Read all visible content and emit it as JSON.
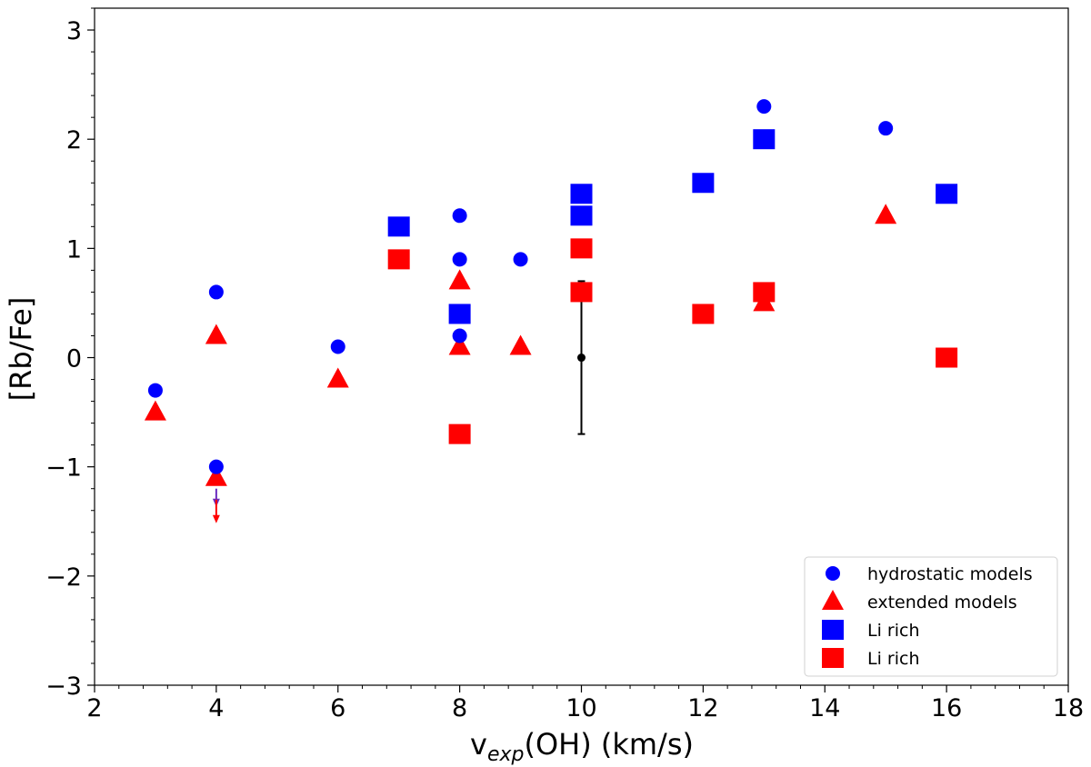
{
  "chart_data": {
    "type": "scatter",
    "xlabel_main": "v",
    "xlabel_sub": "exp",
    "xlabel_rest": "(OH) (km/s)",
    "ylabel": "[Rb/Fe]",
    "xlim": [
      2,
      18
    ],
    "ylim": [
      -3,
      3.2
    ],
    "x_ticks": [
      2,
      4,
      6,
      8,
      10,
      12,
      14,
      16,
      18
    ],
    "x_tick_labels": [
      "2",
      "4",
      "6",
      "8",
      "10",
      "12",
      "14",
      "16",
      "18"
    ],
    "y_ticks": [
      -3,
      -2,
      -1,
      0,
      1,
      2,
      3
    ],
    "y_tick_labels": [
      "−3",
      "−2",
      "−1",
      "0",
      "1",
      "2",
      "3"
    ],
    "series": [
      {
        "name": "hydrostatic models",
        "marker": "circle",
        "color": "#0000ff",
        "points": [
          [
            3,
            -0.3
          ],
          [
            4,
            0.6
          ],
          [
            4,
            -1.0
          ],
          [
            6,
            0.1
          ],
          [
            8,
            1.3
          ],
          [
            8,
            0.9
          ],
          [
            8,
            0.2
          ],
          [
            9,
            0.9
          ],
          [
            13,
            2.3
          ],
          [
            15,
            2.1
          ]
        ]
      },
      {
        "name": "extended models",
        "marker": "triangle",
        "color": "#ff0000",
        "points": [
          [
            3,
            -0.5
          ],
          [
            4,
            0.2
          ],
          [
            4,
            -1.1
          ],
          [
            6,
            -0.2
          ],
          [
            8,
            0.7
          ],
          [
            8,
            0.1
          ],
          [
            9,
            0.1
          ],
          [
            13,
            0.5
          ],
          [
            15,
            1.3
          ]
        ]
      },
      {
        "name": "Li rich",
        "marker": "square",
        "color": "#0000ff",
        "points": [
          [
            7,
            1.2
          ],
          [
            8,
            0.4
          ],
          [
            10,
            1.5
          ],
          [
            10,
            1.3
          ],
          [
            12,
            1.6
          ],
          [
            13,
            2.0
          ],
          [
            16,
            1.5
          ]
        ]
      },
      {
        "name": "Li rich",
        "marker": "square",
        "color": "#ff0000",
        "points": [
          [
            7,
            0.9
          ],
          [
            8,
            -0.7
          ],
          [
            10,
            1.0
          ],
          [
            10,
            0.6
          ],
          [
            12,
            0.4
          ],
          [
            13,
            0.6
          ],
          [
            16,
            0.0
          ]
        ]
      }
    ],
    "error_bar": {
      "x": 10,
      "y": 0,
      "yerr": 0.7,
      "color": "#000000"
    },
    "upper_limits": [
      {
        "x": 4,
        "from": -1.2,
        "to": -1.35,
        "color": "#6a2cc0"
      },
      {
        "x": 4,
        "from": -1.3,
        "to": -1.5,
        "color": "#ff0000"
      }
    ],
    "legend": {
      "position": "lower right",
      "entries": [
        {
          "label": "hydrostatic models",
          "marker": "circle",
          "color": "#0000ff"
        },
        {
          "label": "extended models",
          "marker": "triangle",
          "color": "#ff0000"
        },
        {
          "label": "Li rich",
          "marker": "square",
          "color": "#0000ff"
        },
        {
          "label": "Li rich",
          "marker": "square",
          "color": "#ff0000"
        }
      ]
    }
  }
}
